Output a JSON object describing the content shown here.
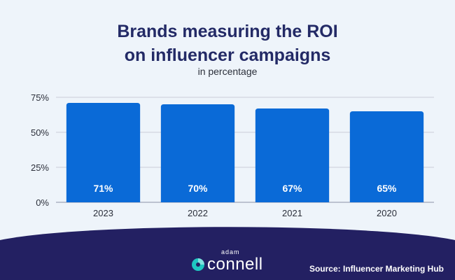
{
  "header": {
    "title_line1": "Brands measuring the ROI",
    "title_line2": "on influencer campaigns",
    "subtitle": "in percentage"
  },
  "chart_data": {
    "type": "bar",
    "title": "Brands measuring the ROI on influencer campaigns",
    "subtitle": "in percentage",
    "categories": [
      "2023",
      "2022",
      "2021",
      "2020"
    ],
    "values": [
      71,
      70,
      67,
      65
    ],
    "value_labels": [
      "71%",
      "70%",
      "67%",
      "65%"
    ],
    "ylim": [
      0,
      75
    ],
    "yticks": [
      0,
      25,
      50,
      75
    ],
    "ytick_labels": [
      "0%",
      "25%",
      "50%",
      "75%"
    ],
    "xlabel": "",
    "ylabel": "",
    "grid": true,
    "bar_color": "#0a6ad7"
  },
  "footer": {
    "logo_top": "adam",
    "logo_main": "connell",
    "source": "Source: Influencer Marketing Hub"
  },
  "colors": {
    "background": "#eef4fa",
    "title": "#232a66",
    "footer": "#232062",
    "bar": "#0a6ad7",
    "grid": "#c9ccd8",
    "axis_text": "#2b2f3a"
  }
}
